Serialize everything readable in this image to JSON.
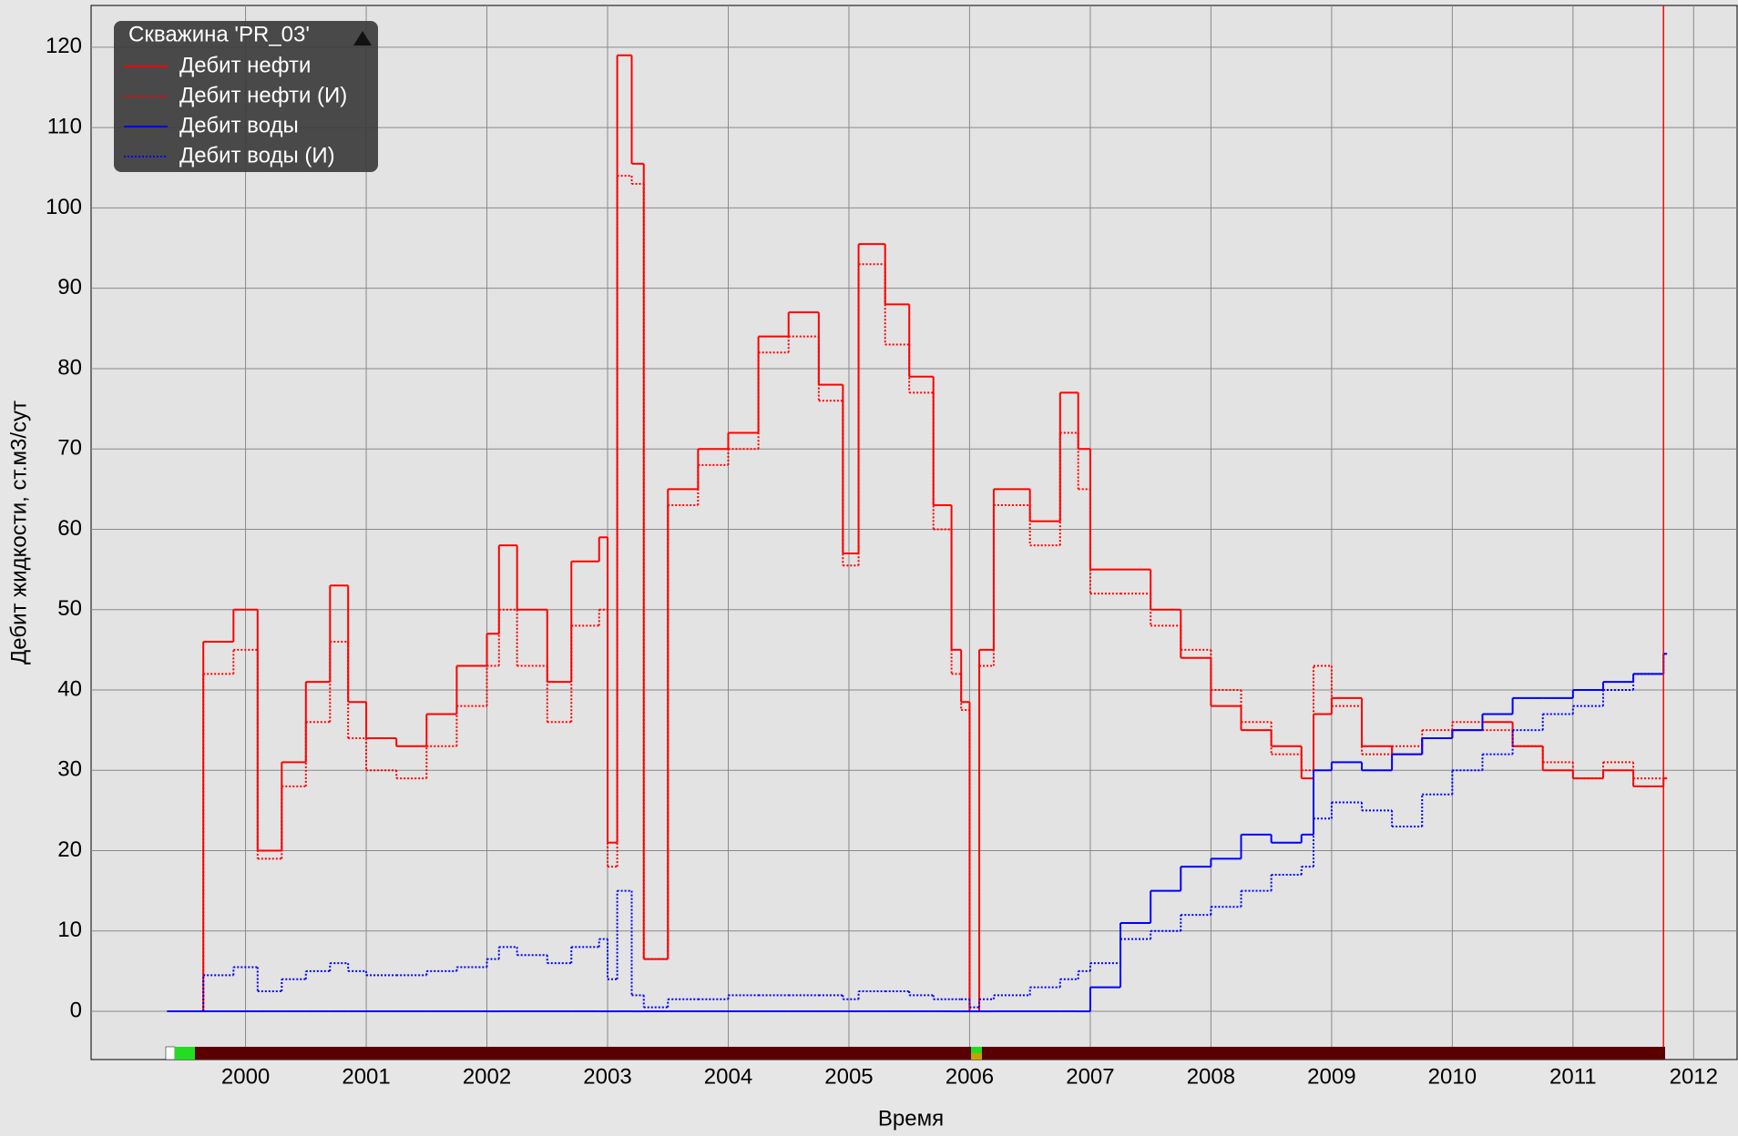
{
  "chart_data": {
    "type": "step",
    "legend_title": "Скважина 'PR_03'",
    "x_label": "Время",
    "y_label": "Дебит жидкости, ст.м3/сут",
    "x": [
      1999.35,
      1999.65,
      1999.9,
      2000.1,
      2000.3,
      2000.5,
      2000.7,
      2000.85,
      2001.0,
      2001.25,
      2001.5,
      2001.75,
      2002.0,
      2002.1,
      2002.25,
      2002.5,
      2002.7,
      2002.93,
      2003.0,
      2003.08,
      2003.2,
      2003.3,
      2003.5,
      2003.75,
      2004.0,
      2004.25,
      2004.5,
      2004.75,
      2004.95,
      2005.08,
      2005.3,
      2005.5,
      2005.7,
      2005.85,
      2005.93,
      2006.0,
      2006.08,
      2006.2,
      2006.5,
      2006.75,
      2006.9,
      2007.0,
      2007.25,
      2007.5,
      2007.75,
      2008.0,
      2008.25,
      2008.5,
      2008.75,
      2008.85,
      2009.0,
      2009.25,
      2009.5,
      2009.75,
      2010.0,
      2010.25,
      2010.5,
      2010.75,
      2011.0,
      2011.25,
      2011.5,
      2011.75
    ],
    "series": [
      {
        "name": "Дебит нефти",
        "color": "#ff0000",
        "dash": false,
        "values": [
          0,
          46,
          50,
          20,
          31,
          41,
          53,
          38.5,
          34,
          33,
          37,
          43,
          47,
          58,
          50,
          41,
          56,
          59,
          21,
          119,
          105.5,
          6.5,
          65,
          70,
          72,
          84,
          87,
          78,
          57,
          95.5,
          88,
          79,
          63,
          45,
          38.5,
          0,
          45,
          65,
          61,
          77,
          70,
          55,
          55,
          50,
          44,
          38,
          35,
          33,
          29,
          37,
          39,
          33,
          32,
          34,
          35,
          36,
          33,
          30,
          29,
          30,
          28,
          29
        ]
      },
      {
        "name": "Дебит нефти (И)",
        "color": "#ff0000",
        "dash": true,
        "values": [
          0,
          42,
          45,
          19,
          28,
          36,
          46,
          34,
          30,
          29,
          33,
          38,
          43,
          50,
          43,
          36,
          48,
          50,
          18,
          104,
          103,
          6.5,
          63,
          68,
          70,
          82,
          84,
          76,
          55.5,
          93,
          83,
          77,
          60,
          42,
          37.5,
          0,
          43,
          63,
          58,
          72,
          65,
          52,
          52,
          48,
          45,
          40,
          36,
          32,
          30,
          43,
          38,
          32,
          33,
          35,
          36,
          35,
          33,
          31,
          29,
          31,
          29,
          29
        ]
      },
      {
        "name": "Дебит воды",
        "color": "#0000ff",
        "dash": false,
        "values": [
          0,
          0,
          0,
          0,
          0,
          0,
          0,
          0,
          0,
          0,
          0,
          0,
          0,
          0,
          0,
          0,
          0,
          0,
          0,
          0,
          0,
          0,
          0,
          0,
          0,
          0,
          0,
          0,
          0,
          0,
          0,
          0,
          0,
          0,
          0,
          0,
          0,
          0,
          0,
          0,
          0,
          3,
          11,
          15,
          18,
          19,
          22,
          21,
          22,
          30,
          31,
          30,
          32,
          34,
          35,
          37,
          39,
          39,
          40,
          41,
          42,
          44.5
        ]
      },
      {
        "name": "Дебит воды (И)",
        "color": "#0000ff",
        "dash": true,
        "values": [
          0,
          4.5,
          5.5,
          2.5,
          4,
          5,
          6,
          5,
          4.5,
          4.5,
          5,
          5.5,
          6.5,
          8,
          7,
          6,
          8,
          9,
          4,
          15,
          2,
          0.5,
          1.5,
          1.5,
          2,
          2,
          2,
          2,
          1.5,
          2.5,
          2.5,
          2,
          1.5,
          1.5,
          1.5,
          0.5,
          1.5,
          2,
          3,
          4,
          5,
          6,
          9,
          10,
          12,
          13,
          15,
          17,
          18,
          24,
          26,
          25,
          23,
          27,
          30,
          32,
          35,
          37,
          38,
          40,
          42,
          44.5
        ]
      }
    ],
    "xlim": [
      1998.72,
      2012.36
    ],
    "xticks": [
      2000,
      2001,
      2002,
      2003,
      2004,
      2005,
      2006,
      2007,
      2008,
      2009,
      2010,
      2011,
      2012
    ],
    "ylim": [
      -6,
      125.2
    ],
    "yticks": [
      0,
      10,
      20,
      30,
      40,
      50,
      60,
      70,
      80,
      90,
      100,
      110,
      120
    ],
    "grid": true,
    "time_marker": 2011.75,
    "time_marker_color": "#ff0000"
  }
}
